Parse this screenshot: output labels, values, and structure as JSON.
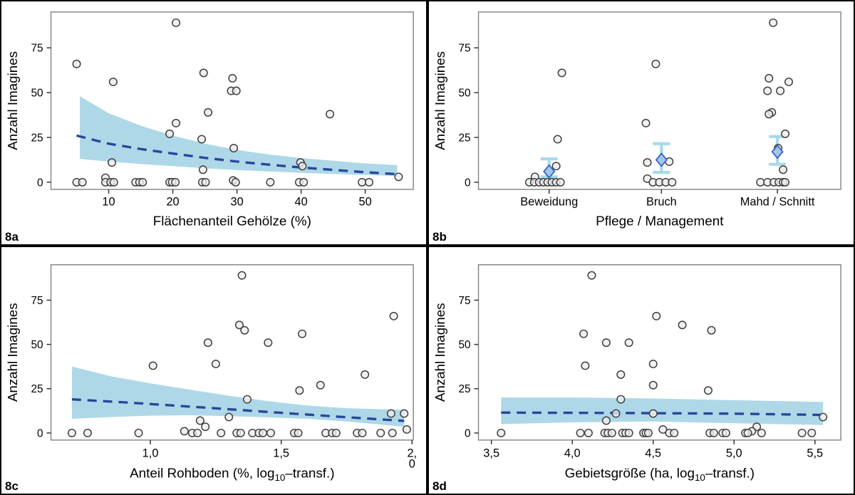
{
  "chart_data": [
    {
      "panel_label": "8a",
      "type": "scatter",
      "ylabel": "Anzahl Imagines",
      "xlabel_parts": [
        {
          "t": "Flächenanteil Gehölze (%)"
        }
      ],
      "xlim": [
        1,
        57.5
      ],
      "ylim": [
        -4,
        95
      ],
      "xticks": [
        {
          "v": 10,
          "t": "10"
        },
        {
          "v": 20,
          "t": "20"
        },
        {
          "v": 30,
          "t": "30"
        },
        {
          "v": 40,
          "t": "40"
        },
        {
          "v": 50,
          "t": "50"
        }
      ],
      "yticks": [
        {
          "v": 0,
          "t": "0"
        },
        {
          "v": 25,
          "t": "25"
        },
        {
          "v": 50,
          "t": "50"
        },
        {
          "v": 75,
          "t": "75"
        }
      ],
      "points": [
        [
          5,
          66
        ],
        [
          10.7,
          56
        ],
        [
          20.5,
          89
        ],
        [
          24.8,
          61
        ],
        [
          29.3,
          58
        ],
        [
          29.1,
          51
        ],
        [
          29.9,
          51
        ],
        [
          25.5,
          39
        ],
        [
          44.5,
          38
        ],
        [
          20.5,
          33
        ],
        [
          19.5,
          27
        ],
        [
          24.5,
          24
        ],
        [
          29.5,
          19
        ],
        [
          10.5,
          11
        ],
        [
          39.9,
          11
        ],
        [
          40.2,
          9
        ],
        [
          24.7,
          7
        ],
        [
          55.2,
          3
        ],
        [
          9.5,
          2.5
        ],
        [
          5,
          0
        ],
        [
          5.9,
          0
        ],
        [
          9.5,
          0
        ],
        [
          10.3,
          0
        ],
        [
          10.8,
          0
        ],
        [
          14.2,
          0
        ],
        [
          14.8,
          0
        ],
        [
          15.3,
          0
        ],
        [
          19.5,
          0
        ],
        [
          19.9,
          0
        ],
        [
          20.4,
          0
        ],
        [
          24.6,
          0
        ],
        [
          25.1,
          0
        ],
        [
          29.4,
          1
        ],
        [
          29.8,
          0
        ],
        [
          35.2,
          0
        ],
        [
          39.7,
          0
        ],
        [
          40.4,
          0
        ],
        [
          49.5,
          0
        ],
        [
          50.6,
          0
        ]
      ],
      "smooth": {
        "line": [
          [
            5,
            26
          ],
          [
            10,
            21.5
          ],
          [
            15,
            18.5
          ],
          [
            20,
            16
          ],
          [
            25,
            13.6
          ],
          [
            30,
            11.5
          ],
          [
            35,
            9.8
          ],
          [
            40,
            8.2
          ],
          [
            45,
            6.9
          ],
          [
            50,
            5.6
          ],
          [
            55,
            4.5
          ]
        ],
        "upper": [
          [
            5.5,
            48
          ],
          [
            10,
            38.5
          ],
          [
            15,
            31.5
          ],
          [
            20,
            26
          ],
          [
            25,
            21.5
          ],
          [
            30,
            18
          ],
          [
            35,
            15.5
          ],
          [
            40,
            13.5
          ],
          [
            45,
            12
          ],
          [
            50,
            10.5
          ],
          [
            55,
            9.5
          ]
        ],
        "lower": [
          [
            5.5,
            13
          ],
          [
            10,
            11.5
          ],
          [
            15,
            10.2
          ],
          [
            20,
            9
          ],
          [
            25,
            7.8
          ],
          [
            30,
            6.8
          ],
          [
            35,
            6
          ],
          [
            40,
            5.2
          ],
          [
            45,
            4.6
          ],
          [
            50,
            4
          ],
          [
            55,
            3.5
          ]
        ]
      }
    },
    {
      "panel_label": "8b",
      "type": "categorical",
      "ylabel": "Anzahl Imagines",
      "xlabel_parts": [
        {
          "t": "Pflege / Management"
        }
      ],
      "ylim": [
        -4,
        95
      ],
      "yticks": [
        {
          "v": 0,
          "t": "0"
        },
        {
          "v": 25,
          "t": "25"
        },
        {
          "v": 50,
          "t": "50"
        },
        {
          "v": 75,
          "t": "75"
        }
      ],
      "cat_fractions": [
        0.195,
        0.505,
        0.825
      ],
      "categories": [
        {
          "label": "Beweidung",
          "mean": 6,
          "ci_low": 3,
          "ci_high": 13,
          "points": [
            [
              18,
              61
            ],
            [
              12,
              24
            ],
            [
              10,
              9
            ],
            [
              -20,
              3
            ],
            [
              -28,
              0
            ],
            [
              -21,
              0
            ],
            [
              -14,
              0
            ],
            [
              -8,
              0
            ],
            [
              -2,
              0
            ],
            [
              4,
              0
            ],
            [
              10,
              0
            ],
            [
              16,
              0
            ]
          ]
        },
        {
          "label": "Bruch",
          "mean": 12.5,
          "ci_low": 5.5,
          "ci_high": 21.5,
          "points": [
            [
              -8,
              66
            ],
            [
              -22,
              33
            ],
            [
              -20,
              11
            ],
            [
              11,
              11.5
            ],
            [
              -20,
              2
            ],
            [
              -12,
              0
            ],
            [
              -3,
              0
            ],
            [
              6,
              0
            ],
            [
              15,
              0
            ]
          ]
        },
        {
          "label": "Mahd / Schnitt",
          "mean": 17,
          "ci_low": 10,
          "ci_high": 25.5,
          "points": [
            [
              -6,
              89
            ],
            [
              -12,
              58
            ],
            [
              16,
              56
            ],
            [
              -14,
              51
            ],
            [
              4,
              51
            ],
            [
              -8,
              39
            ],
            [
              -12,
              38
            ],
            [
              11,
              27
            ],
            [
              1,
              19
            ],
            [
              8,
              7
            ],
            [
              -24,
              0
            ],
            [
              -14,
              0
            ],
            [
              -5,
              0
            ],
            [
              2,
              0
            ],
            [
              8,
              0
            ],
            [
              11,
              0
            ]
          ]
        }
      ]
    },
    {
      "panel_label": "8c",
      "type": "scatter",
      "ylabel": "Anzahl Imagines",
      "xlabel_parts": [
        {
          "t": "Anteil Rohboden (%, log"
        },
        {
          "t": "10",
          "sub": true
        },
        {
          "t": "–transf.)"
        }
      ],
      "xlim": [
        0.62,
        2.005
      ],
      "ylim": [
        -4,
        95
      ],
      "xticks": [
        {
          "v": 1.0,
          "t": "1,0"
        },
        {
          "v": 1.5,
          "t": "1,5"
        },
        {
          "v": 2.0,
          "t": "2,",
          "t2": "0"
        }
      ],
      "yticks": [
        {
          "v": 0,
          "t": "0"
        },
        {
          "v": 25,
          "t": "25"
        },
        {
          "v": 50,
          "t": "50"
        },
        {
          "v": 75,
          "t": "75"
        }
      ],
      "points": [
        [
          1.35,
          89
        ],
        [
          1.93,
          66
        ],
        [
          1.34,
          61
        ],
        [
          1.36,
          58
        ],
        [
          1.58,
          56
        ],
        [
          1.22,
          51
        ],
        [
          1.45,
          51
        ],
        [
          1.25,
          39
        ],
        [
          1.01,
          38
        ],
        [
          1.82,
          33
        ],
        [
          1.65,
          27
        ],
        [
          1.57,
          24
        ],
        [
          1.37,
          19
        ],
        [
          1.92,
          11
        ],
        [
          1.97,
          11
        ],
        [
          1.3,
          9
        ],
        [
          1.19,
          7
        ],
        [
          1.21,
          3.5
        ],
        [
          1.13,
          1
        ],
        [
          1.98,
          2
        ],
        [
          0.7,
          0
        ],
        [
          0.76,
          0
        ],
        [
          0.955,
          0
        ],
        [
          1.16,
          0
        ],
        [
          1.18,
          0
        ],
        [
          1.27,
          0
        ],
        [
          1.33,
          0
        ],
        [
          1.345,
          0
        ],
        [
          1.39,
          0
        ],
        [
          1.415,
          0
        ],
        [
          1.43,
          0
        ],
        [
          1.46,
          0
        ],
        [
          1.55,
          0
        ],
        [
          1.565,
          0
        ],
        [
          1.67,
          0
        ],
        [
          1.695,
          0
        ],
        [
          1.71,
          0
        ],
        [
          1.79,
          0
        ],
        [
          1.81,
          0
        ],
        [
          1.88,
          0
        ],
        [
          1.925,
          0
        ]
      ],
      "smooth": {
        "line": [
          [
            0.7,
            19
          ],
          [
            0.9,
            17.3
          ],
          [
            1.1,
            15.4
          ],
          [
            1.3,
            13.4
          ],
          [
            1.5,
            11.4
          ],
          [
            1.7,
            9.4
          ],
          [
            1.97,
            6.8
          ]
        ],
        "upper": [
          [
            0.7,
            37.5
          ],
          [
            0.85,
            32
          ],
          [
            1.0,
            28
          ],
          [
            1.15,
            24.5
          ],
          [
            1.3,
            21
          ],
          [
            1.45,
            18
          ],
          [
            1.6,
            15.5
          ],
          [
            1.75,
            14
          ],
          [
            1.97,
            13
          ]
        ],
        "lower": [
          [
            0.7,
            8
          ],
          [
            0.85,
            9
          ],
          [
            1.0,
            9.8
          ],
          [
            1.15,
            10
          ],
          [
            1.3,
            9.5
          ],
          [
            1.45,
            8.8
          ],
          [
            1.6,
            8
          ],
          [
            1.75,
            6.5
          ],
          [
            1.97,
            3.5
          ]
        ]
      }
    },
    {
      "panel_label": "8d",
      "type": "scatter",
      "ylabel": "Anzahl Imagines",
      "xlabel_parts": [
        {
          "t": "Gebietsgröße (ha, log"
        },
        {
          "t": "10",
          "sub": true
        },
        {
          "t": "–transf.)"
        }
      ],
      "xlim": [
        3.42,
        5.66
      ],
      "ylim": [
        -4,
        95
      ],
      "xticks": [
        {
          "v": 3.5,
          "t": "3,5"
        },
        {
          "v": 4.0,
          "t": "4,0"
        },
        {
          "v": 4.5,
          "t": "4,5"
        },
        {
          "v": 5.0,
          "t": "5,0"
        },
        {
          "v": 5.5,
          "t": "5,5"
        }
      ],
      "yticks": [
        {
          "v": 0,
          "t": "0"
        },
        {
          "v": 25,
          "t": "25"
        },
        {
          "v": 50,
          "t": "50"
        },
        {
          "v": 75,
          "t": "75"
        }
      ],
      "points": [
        [
          4.12,
          89
        ],
        [
          4.52,
          66
        ],
        [
          4.68,
          61
        ],
        [
          4.86,
          58
        ],
        [
          4.07,
          56
        ],
        [
          4.21,
          51
        ],
        [
          4.35,
          51
        ],
        [
          4.5,
          39
        ],
        [
          4.08,
          38
        ],
        [
          4.3,
          33
        ],
        [
          4.5,
          27
        ],
        [
          4.84,
          24
        ],
        [
          4.3,
          19
        ],
        [
          4.27,
          11
        ],
        [
          4.5,
          11
        ],
        [
          5.55,
          9
        ],
        [
          4.21,
          7
        ],
        [
          5.14,
          3.5
        ],
        [
          4.56,
          2
        ],
        [
          5.11,
          1
        ],
        [
          3.56,
          0
        ],
        [
          4.05,
          0
        ],
        [
          4.1,
          0
        ],
        [
          4.2,
          0
        ],
        [
          4.22,
          0
        ],
        [
          4.245,
          0
        ],
        [
          4.31,
          0
        ],
        [
          4.33,
          0
        ],
        [
          4.35,
          0
        ],
        [
          4.44,
          0
        ],
        [
          4.455,
          0
        ],
        [
          4.47,
          0
        ],
        [
          4.6,
          0
        ],
        [
          4.63,
          0
        ],
        [
          4.85,
          0
        ],
        [
          4.875,
          0
        ],
        [
          4.93,
          0
        ],
        [
          4.95,
          0
        ],
        [
          5.07,
          0
        ],
        [
          5.085,
          0
        ],
        [
          5.17,
          0
        ],
        [
          5.42,
          0
        ],
        [
          5.48,
          0
        ]
      ],
      "smooth": {
        "line": [
          [
            3.56,
            11.5
          ],
          [
            4.0,
            11.4
          ],
          [
            4.5,
            11.2
          ],
          [
            5.0,
            10.9
          ],
          [
            5.55,
            10.2
          ]
        ],
        "upper": [
          [
            3.56,
            20
          ],
          [
            4.0,
            20
          ],
          [
            4.5,
            19.5
          ],
          [
            5.0,
            18.5
          ],
          [
            5.55,
            17.5
          ]
        ],
        "lower": [
          [
            3.56,
            5
          ],
          [
            4.0,
            6
          ],
          [
            4.5,
            6.5
          ],
          [
            5.0,
            5.5
          ],
          [
            5.55,
            4.5
          ]
        ]
      }
    }
  ],
  "colors": {
    "band": "#AED8E7",
    "trend_line": "#26479B",
    "error_bar": "#A6D9EC",
    "diamond_fill": "#9EC7EC",
    "diamond_stroke": "#3C62BE",
    "point_fill": "#ECECEC",
    "point_stroke": "#3F3F3F",
    "plot_border": "#808080",
    "text": "#000000"
  }
}
